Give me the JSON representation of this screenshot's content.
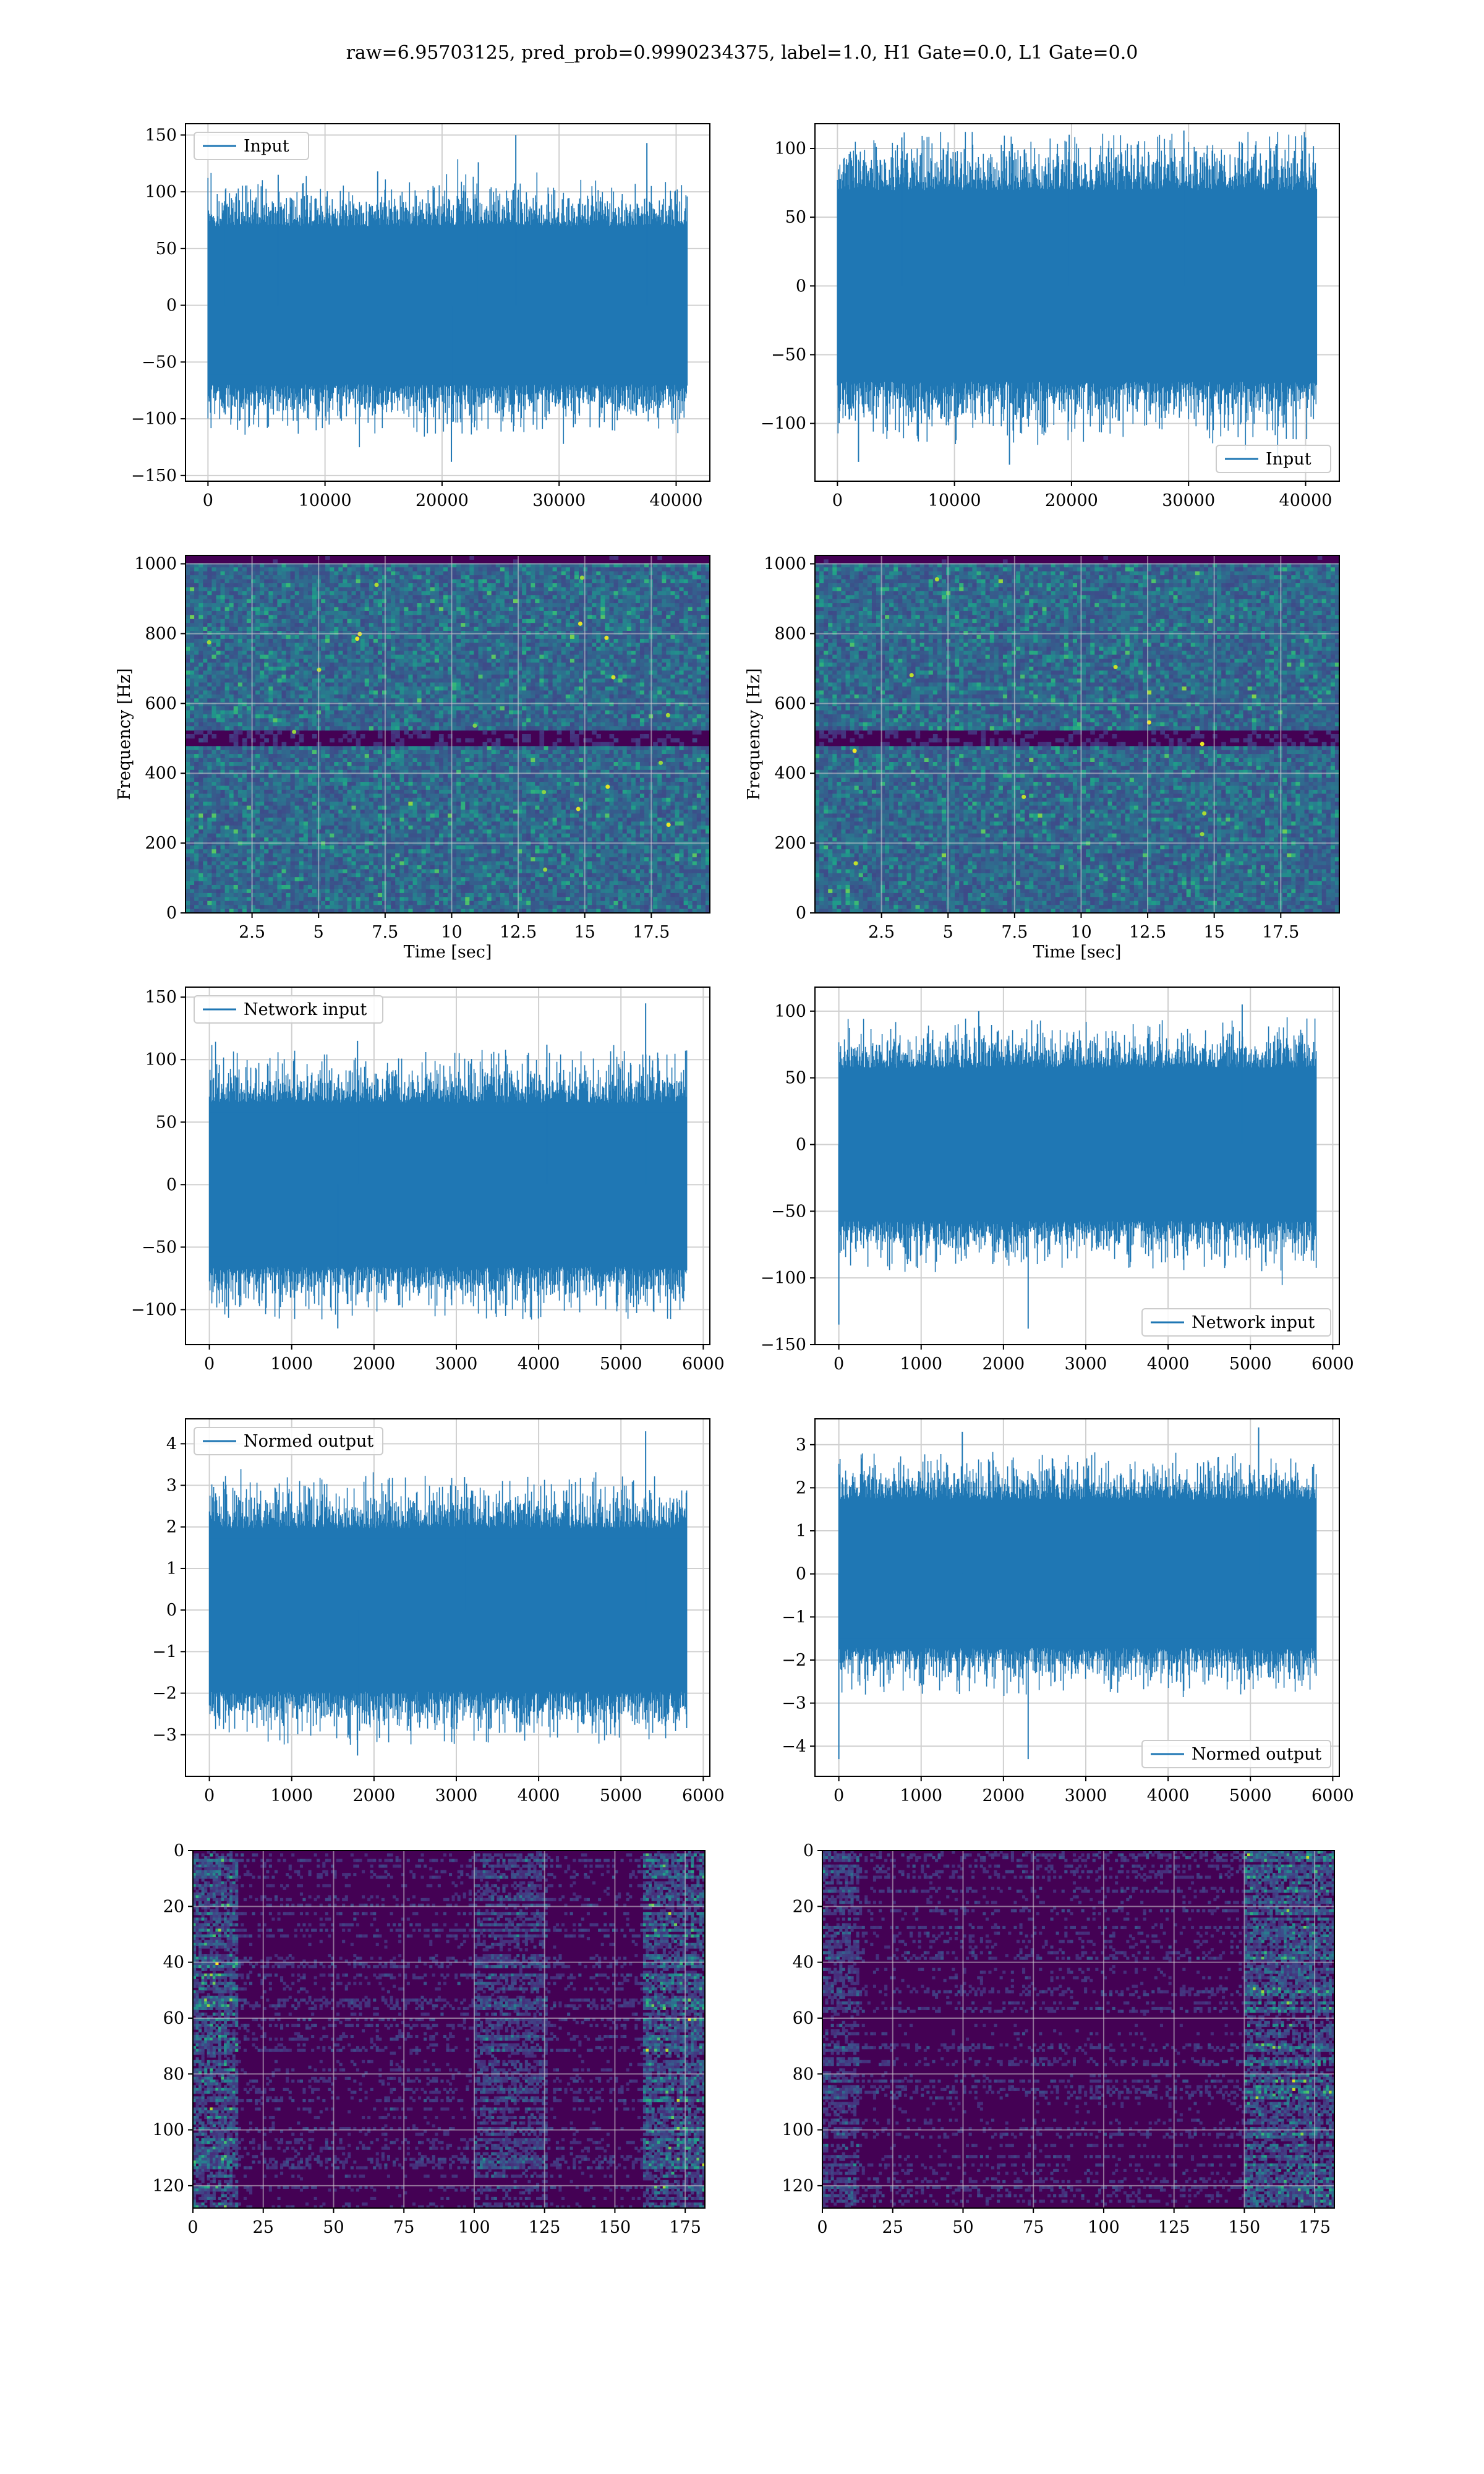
{
  "title": "raw=6.95703125, pred_prob=0.9990234375, label=1.0, H1 Gate=0.0, L1 Gate=0.0",
  "colors": {
    "line": "#1f77b4",
    "grid": "#d0d0d0",
    "viridis_low": "#440154",
    "viridis_high": "#fde725"
  },
  "chart_data": [
    {
      "id": "input-h1",
      "type": "line",
      "legend": "Input",
      "legend_position": "upper left",
      "xlim": [
        -1920,
        42880
      ],
      "ylim": [
        -155,
        160
      ],
      "xticks": [
        0,
        10000,
        20000,
        30000,
        40000
      ],
      "yticks": [
        -150,
        -100,
        -50,
        0,
        50,
        100,
        150
      ],
      "series": [
        {
          "name": "Input",
          "n_samples": 40960,
          "x": [
            0,
            40960
          ],
          "envelope": {
            "min": -140,
            "max": 152,
            "typical_min": -85,
            "typical_max": 85
          },
          "spikes": [
            [
              1500,
              102
            ],
            [
              6000,
              115
            ],
            [
              14500,
              118
            ],
            [
              20800,
              -138
            ],
            [
              23100,
              126
            ],
            [
              26300,
              150
            ],
            [
              37500,
              143
            ]
          ]
        }
      ],
      "grid": true
    },
    {
      "id": "input-l1",
      "type": "line",
      "legend": "Input",
      "legend_position": "lower right",
      "xlim": [
        -1920,
        42880
      ],
      "ylim": [
        -142,
        118
      ],
      "xticks": [
        0,
        10000,
        20000,
        30000,
        40000
      ],
      "yticks": [
        -100,
        -50,
        0,
        50,
        100
      ],
      "series": [
        {
          "name": "Input",
          "n_samples": 40960,
          "x": [
            0,
            40960
          ],
          "envelope": {
            "min": -130,
            "max": 112,
            "typical_min": -85,
            "typical_max": 85
          },
          "spikes": [
            [
              1800,
              -128
            ],
            [
              5500,
              108
            ],
            [
              14700,
              -130
            ],
            [
              19800,
              110
            ],
            [
              29600,
              113
            ],
            [
              40000,
              108
            ]
          ]
        }
      ],
      "grid": true
    },
    {
      "id": "spectrogram-h1",
      "type": "heatmap",
      "colormap": "viridis",
      "xlabel": "Time [sec]",
      "ylabel": "Frequency [Hz]",
      "xlim": [
        0,
        19.7
      ],
      "ylim": [
        0,
        1024
      ],
      "xticks": [
        2.5,
        5.0,
        7.5,
        10.0,
        12.5,
        15.0,
        17.5
      ],
      "yticks": [
        0,
        200,
        400,
        600,
        800,
        1000
      ],
      "features": {
        "dark_band_hz": [
          480,
          520
        ],
        "dark_edge_hz": [
          1000,
          1024
        ],
        "bright_points": 18
      },
      "grid": true
    },
    {
      "id": "spectrogram-l1",
      "type": "heatmap",
      "colormap": "viridis",
      "xlabel": "Time [sec]",
      "ylabel": "Frequency [Hz]",
      "xlim": [
        0,
        19.7
      ],
      "ylim": [
        0,
        1024
      ],
      "xticks": [
        2.5,
        5.0,
        7.5,
        10.0,
        12.5,
        15.0,
        17.5
      ],
      "yticks": [
        0,
        200,
        400,
        600,
        800,
        1000
      ],
      "features": {
        "dark_band_hz": [
          480,
          520
        ],
        "dark_edge_hz": [
          1000,
          1024
        ],
        "bright_points": 10
      },
      "grid": true
    },
    {
      "id": "network-input-h1",
      "type": "line",
      "legend": "Network input",
      "legend_position": "upper left",
      "xlim": [
        -290,
        6080
      ],
      "ylim": [
        -128,
        158
      ],
      "xticks": [
        0,
        1000,
        2000,
        3000,
        4000,
        5000,
        6000
      ],
      "yticks": [
        -100,
        -50,
        0,
        50,
        100,
        150
      ],
      "series": [
        {
          "name": "Network input",
          "n_samples": 5800,
          "x": [
            0,
            5800
          ],
          "envelope": {
            "min": -115,
            "max": 145,
            "typical_min": -80,
            "typical_max": 80
          },
          "spikes": [
            [
              1560,
              -115
            ],
            [
              1800,
              115
            ],
            [
              4100,
              112
            ],
            [
              5300,
              145
            ]
          ]
        }
      ],
      "grid": true
    },
    {
      "id": "network-input-l1",
      "type": "line",
      "legend": "Network input",
      "legend_position": "lower right",
      "xlim": [
        -290,
        6080
      ],
      "ylim": [
        -150,
        118
      ],
      "xticks": [
        0,
        1000,
        2000,
        3000,
        4000,
        5000,
        6000
      ],
      "yticks": [
        -150,
        -100,
        -50,
        0,
        50,
        100
      ],
      "series": [
        {
          "name": "Network input",
          "n_samples": 5800,
          "x": [
            0,
            5800
          ],
          "envelope": {
            "min": -138,
            "max": 105,
            "typical_min": -70,
            "typical_max": 70
          },
          "spikes": [
            [
              0,
              -135
            ],
            [
              1700,
              100
            ],
            [
              2300,
              -138
            ],
            [
              4900,
              105
            ]
          ]
        }
      ],
      "grid": true
    },
    {
      "id": "normed-output-h1",
      "type": "line",
      "legend": "Normed output",
      "legend_position": "upper left",
      "xlim": [
        -290,
        6080
      ],
      "ylim": [
        -4.0,
        4.6
      ],
      "xticks": [
        0,
        1000,
        2000,
        3000,
        4000,
        5000,
        6000
      ],
      "yticks": [
        -3,
        -2,
        -1,
        0,
        1,
        2,
        3,
        4
      ],
      "series": [
        {
          "name": "Normed output",
          "n_samples": 5800,
          "x": [
            0,
            5800
          ],
          "envelope": {
            "min": -3.6,
            "max": 4.3,
            "typical_min": -2.4,
            "typical_max": 2.4
          },
          "spikes": [
            [
              1800,
              -3.5
            ],
            [
              3100,
              3.2
            ],
            [
              5300,
              4.3
            ]
          ]
        }
      ],
      "grid": true
    },
    {
      "id": "normed-output-l1",
      "type": "line",
      "legend": "Normed output",
      "legend_position": "lower right",
      "xlim": [
        -290,
        6080
      ],
      "ylim": [
        -4.7,
        3.6
      ],
      "xticks": [
        0,
        1000,
        2000,
        3000,
        4000,
        5000,
        6000
      ],
      "yticks": [
        -4,
        -3,
        -2,
        -1,
        0,
        1,
        2,
        3
      ],
      "series": [
        {
          "name": "Normed output",
          "n_samples": 5800,
          "x": [
            0,
            5800
          ],
          "envelope": {
            "min": -4.4,
            "max": 3.4,
            "typical_min": -2.1,
            "typical_max": 2.1
          },
          "spikes": [
            [
              0,
              -4.3
            ],
            [
              1500,
              3.3
            ],
            [
              2300,
              -4.3
            ],
            [
              5100,
              3.4
            ]
          ]
        }
      ],
      "grid": true
    },
    {
      "id": "features-h1",
      "type": "heatmap",
      "colormap": "viridis",
      "y_inverted": true,
      "xlim": [
        0,
        182
      ],
      "ylim": [
        128,
        0
      ],
      "xticks": [
        0,
        25,
        50,
        75,
        100,
        125,
        150,
        175
      ],
      "yticks": [
        0,
        20,
        40,
        60,
        80,
        100,
        120
      ],
      "features": {
        "bright_columns": [
          [
            0,
            15
          ],
          [
            160,
            182
          ]
        ],
        "mid_columns": [
          [
            100,
            125
          ]
        ]
      },
      "grid": true
    },
    {
      "id": "features-l1",
      "type": "heatmap",
      "colormap": "viridis",
      "y_inverted": true,
      "xlim": [
        0,
        182
      ],
      "ylim": [
        128,
        0
      ],
      "xticks": [
        0,
        25,
        50,
        75,
        100,
        125,
        150,
        175
      ],
      "yticks": [
        0,
        20,
        40,
        60,
        80,
        100,
        120
      ],
      "features": {
        "bright_columns": [
          [
            150,
            182
          ]
        ],
        "mid_columns": [
          [
            0,
            12
          ]
        ]
      },
      "grid": true
    }
  ]
}
